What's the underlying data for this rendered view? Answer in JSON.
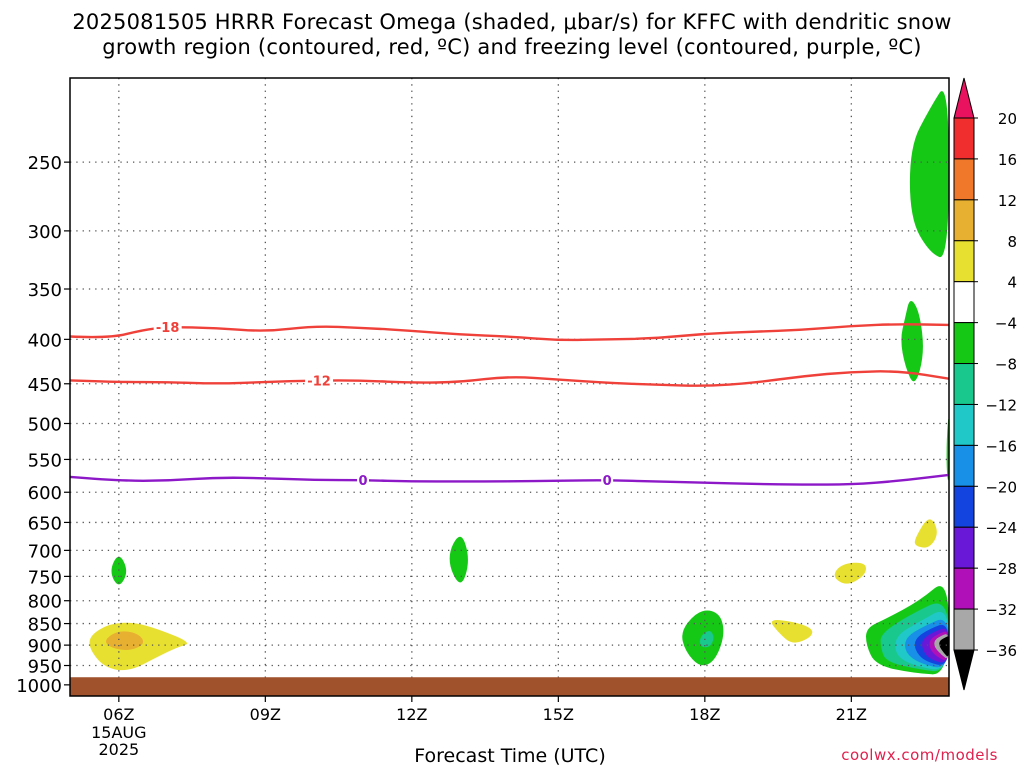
{
  "title_line1": "2025081505 HRRR Forecast Omega (shaded, μbar/s) for KFFC with dendritic snow",
  "title_line2": "growth region (contoured, red, ºC) and freezing level (contoured, purple, ºC)",
  "credit": "coolwx.com/models",
  "chart_data": {
    "type": "heatmap",
    "xlabel": "Forecast Time (UTC)",
    "x_ticks": [
      {
        "hour": 6,
        "label": "06Z",
        "sub": [
          "15AUG",
          "2025"
        ]
      },
      {
        "hour": 9,
        "label": "09Z",
        "sub": []
      },
      {
        "hour": 12,
        "label": "12Z",
        "sub": []
      },
      {
        "hour": 15,
        "label": "15Z",
        "sub": []
      },
      {
        "hour": 18,
        "label": "18Z",
        "sub": []
      },
      {
        "hour": 21,
        "label": "21Z",
        "sub": []
      }
    ],
    "xlim": [
      5,
      23
    ],
    "y_scale": "log-pressure",
    "y_ticks": [
      250,
      300,
      350,
      400,
      450,
      500,
      550,
      600,
      650,
      700,
      750,
      800,
      850,
      900,
      950,
      1000
    ],
    "ylim": [
      1030,
      200
    ],
    "grid": true,
    "ground_level_hpa": 980,
    "colorbar": {
      "levels": [
        20,
        16,
        12,
        8,
        4,
        -4,
        -8,
        -12,
        -16,
        -20,
        -24,
        -28,
        -32,
        -36
      ],
      "colors": [
        "#e8125e",
        "#f02e2e",
        "#f0782a",
        "#e8b030",
        "#e8e030",
        "#ffffff",
        "#16c816",
        "#18c88c",
        "#20c8c8",
        "#1890e8",
        "#1444e0",
        "#6a18d8",
        "#b010b8",
        "#a8a8a8",
        "#000000"
      ]
    },
    "contours": [
      {
        "name": "-18",
        "color": "#f0403a",
        "label_at": 7.0,
        "points": [
          [
            5,
            397
          ],
          [
            5.8,
            399
          ],
          [
            6.5,
            390
          ],
          [
            7,
            387
          ],
          [
            8,
            388
          ],
          [
            9,
            392
          ],
          [
            10,
            386
          ],
          [
            11,
            388
          ],
          [
            12,
            391
          ],
          [
            13,
            395
          ],
          [
            14,
            397
          ],
          [
            15,
            401
          ],
          [
            16,
            400
          ],
          [
            17,
            399
          ],
          [
            18,
            394
          ],
          [
            19,
            392
          ],
          [
            20,
            390
          ],
          [
            21,
            386
          ],
          [
            22,
            384
          ],
          [
            23,
            385
          ]
        ]
      },
      {
        "name": "-12",
        "color": "#f0403a",
        "label_at": 10.1,
        "points": [
          [
            5,
            446
          ],
          [
            6,
            448
          ],
          [
            7,
            448
          ],
          [
            8,
            450
          ],
          [
            9,
            448
          ],
          [
            10,
            446
          ],
          [
            11,
            446
          ],
          [
            12,
            449
          ],
          [
            13,
            448
          ],
          [
            14,
            441
          ],
          [
            15,
            445
          ],
          [
            16,
            449
          ],
          [
            17,
            451
          ],
          [
            18,
            453
          ],
          [
            19,
            449
          ],
          [
            20,
            441
          ],
          [
            21,
            436
          ],
          [
            22,
            435
          ],
          [
            23,
            444
          ]
        ]
      },
      {
        "name": "0",
        "color": "#8c18c8",
        "label_at_list": [
          11,
          16
        ],
        "points": [
          [
            5,
            576
          ],
          [
            6,
            582
          ],
          [
            7,
            582
          ],
          [
            8,
            577
          ],
          [
            9,
            578
          ],
          [
            10,
            581
          ],
          [
            11,
            581
          ],
          [
            12,
            583
          ],
          [
            13,
            583
          ],
          [
            14,
            583
          ],
          [
            15,
            582
          ],
          [
            16,
            581
          ],
          [
            17,
            583
          ],
          [
            18,
            585
          ],
          [
            19,
            587
          ],
          [
            20,
            588
          ],
          [
            21,
            588
          ],
          [
            22,
            582
          ],
          [
            23,
            573
          ]
        ]
      }
    ],
    "shaded_regions": [
      {
        "value": -6,
        "points": [
          [
            22.6,
            217
          ],
          [
            23,
            200
          ],
          [
            23,
            325
          ],
          [
            22.6,
            318
          ],
          [
            22.2,
            290
          ],
          [
            22.2,
            240
          ]
        ]
      },
      {
        "value": -6,
        "points": [
          [
            22.1,
            378
          ],
          [
            22.2,
            357
          ],
          [
            22.4,
            372
          ],
          [
            22.5,
            415
          ],
          [
            22.3,
            455
          ],
          [
            22.1,
            430
          ],
          [
            22.0,
            400
          ]
        ]
      },
      {
        "value": -6,
        "points": [
          [
            22.95,
            520
          ],
          [
            23,
            480
          ],
          [
            23,
            590
          ],
          [
            22.95,
            570
          ]
        ]
      },
      {
        "value": -6,
        "points": [
          [
            6,
            703
          ],
          [
            6.2,
            740
          ],
          [
            6,
            775
          ],
          [
            5.8,
            740
          ]
        ]
      },
      {
        "value": -6,
        "points": [
          [
            13,
            662
          ],
          [
            13.2,
            718
          ],
          [
            13,
            778
          ],
          [
            12.7,
            715
          ]
        ]
      },
      {
        "value": 6,
        "points": [
          [
            5.4,
            878
          ],
          [
            5.8,
            850
          ],
          [
            6.3,
            847
          ],
          [
            6.8,
            862
          ],
          [
            7.5,
            895
          ],
          [
            7.2,
            905
          ],
          [
            6.8,
            928
          ],
          [
            6.2,
            966
          ],
          [
            5.7,
            955
          ],
          [
            5.4,
            910
          ]
        ]
      },
      {
        "value": 10,
        "points": [
          [
            5.7,
            887
          ],
          [
            6.0,
            865
          ],
          [
            6.4,
            872
          ],
          [
            6.55,
            897
          ],
          [
            6.2,
            915
          ],
          [
            5.8,
            905
          ]
        ]
      },
      {
        "value": 6,
        "points": [
          [
            19.8,
            845
          ],
          [
            20.2,
            860
          ],
          [
            20.2,
            880
          ],
          [
            19.8,
            900
          ],
          [
            19.5,
            870
          ],
          [
            19.3,
            840
          ]
        ]
      },
      {
        "value": 6,
        "points": [
          [
            20.8,
            725
          ],
          [
            21.3,
            722
          ],
          [
            21.3,
            747
          ],
          [
            20.9,
            770
          ],
          [
            20.6,
            750
          ]
        ]
      },
      {
        "value": 6,
        "points": [
          [
            22.3,
            678
          ],
          [
            22.6,
            636
          ],
          [
            22.8,
            667
          ],
          [
            22.6,
            697
          ],
          [
            22.3,
            692
          ]
        ]
      },
      {
        "value": -6,
        "points": [
          [
            17.8,
            827
          ],
          [
            18.1,
            818
          ],
          [
            18.35,
            835
          ],
          [
            18.4,
            880
          ],
          [
            18.2,
            940
          ],
          [
            17.9,
            955
          ],
          [
            17.6,
            915
          ],
          [
            17.5,
            870
          ]
        ]
      },
      {
        "value": -10,
        "points": [
          [
            17.9,
            880
          ],
          [
            18.1,
            862
          ],
          [
            18.2,
            882
          ],
          [
            18.1,
            906
          ],
          [
            17.9,
            904
          ]
        ]
      },
      {
        "value": -6,
        "points": [
          [
            21.3,
            860
          ],
          [
            21.7,
            840
          ],
          [
            22.4,
            800
          ],
          [
            23,
            750
          ],
          [
            23,
            975
          ],
          [
            22.3,
            970
          ],
          [
            21.5,
            950
          ],
          [
            21.3,
            900
          ]
        ]
      },
      {
        "value": -10,
        "points": [
          [
            21.6,
            873
          ],
          [
            22.2,
            830
          ],
          [
            23,
            790
          ],
          [
            23,
            970
          ],
          [
            22.3,
            958
          ],
          [
            21.7,
            940
          ],
          [
            21.6,
            905
          ]
        ]
      },
      {
        "value": -14,
        "points": [
          [
            21.9,
            878
          ],
          [
            22.4,
            845
          ],
          [
            23,
            810
          ],
          [
            23,
            966
          ],
          [
            22.3,
            952
          ],
          [
            21.9,
            925
          ]
        ]
      },
      {
        "value": -18,
        "points": [
          [
            22.1,
            882
          ],
          [
            22.5,
            855
          ],
          [
            23,
            832
          ],
          [
            23,
            962
          ],
          [
            22.4,
            945
          ],
          [
            22.1,
            918
          ]
        ]
      },
      {
        "value": -22,
        "points": [
          [
            22.3,
            885
          ],
          [
            22.6,
            862
          ],
          [
            23,
            846
          ],
          [
            23,
            955
          ],
          [
            22.5,
            940
          ],
          [
            22.3,
            912
          ]
        ]
      },
      {
        "value": -26,
        "points": [
          [
            22.45,
            886
          ],
          [
            22.7,
            868
          ],
          [
            23,
            856
          ],
          [
            23,
            948
          ],
          [
            22.6,
            935
          ],
          [
            22.45,
            910
          ]
        ]
      },
      {
        "value": -30,
        "points": [
          [
            22.6,
            887
          ],
          [
            22.8,
            872
          ],
          [
            23,
            865
          ],
          [
            23,
            942
          ],
          [
            22.75,
            929
          ],
          [
            22.6,
            908
          ]
        ]
      },
      {
        "value": -34,
        "points": [
          [
            22.7,
            888
          ],
          [
            22.85,
            877
          ],
          [
            23,
            872
          ],
          [
            23,
            937
          ],
          [
            22.85,
            924
          ],
          [
            22.7,
            905
          ]
        ]
      },
      {
        "value": -40,
        "points": [
          [
            22.8,
            890
          ],
          [
            22.95,
            880
          ],
          [
            23,
            878
          ],
          [
            23,
            932
          ],
          [
            22.9,
            920
          ],
          [
            22.8,
            903
          ]
        ]
      }
    ]
  }
}
